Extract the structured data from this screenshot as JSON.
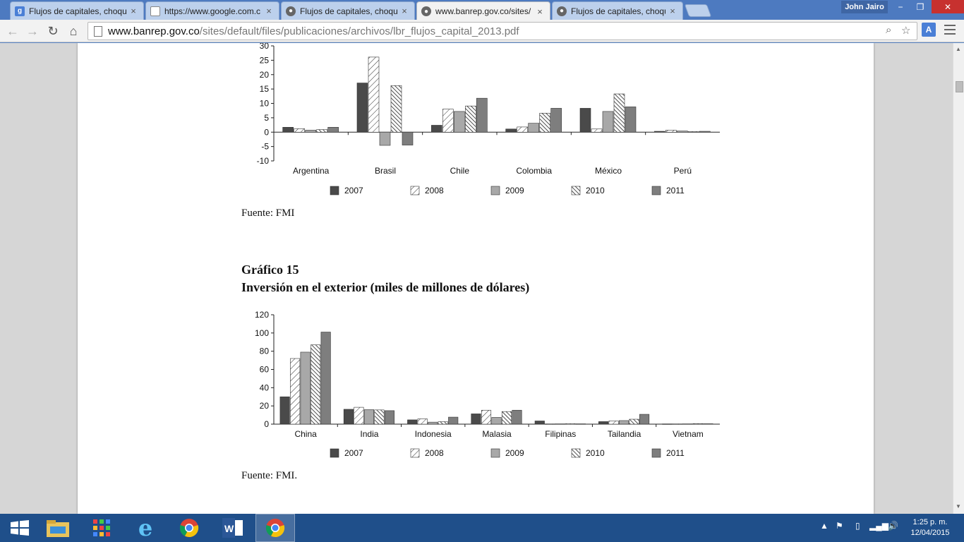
{
  "window": {
    "profile_name": "John Jairo",
    "minimize": "−",
    "restore": "❐",
    "close": "✕"
  },
  "tabs": [
    {
      "title": "Flujos de capitales, choqu",
      "icon": "google-icon",
      "active": false
    },
    {
      "title": "https://www.google.com.c",
      "icon": "page-icon",
      "active": false
    },
    {
      "title": "Flujos de capitales, choqu",
      "icon": "banrep-icon",
      "active": false
    },
    {
      "title": "www.banrep.gov.co/sites/",
      "icon": "banrep-icon",
      "active": true
    },
    {
      "title": "Flujos de capitales, choqu",
      "icon": "banrep-icon",
      "active": false
    }
  ],
  "toolbar": {
    "url_domain": "www.banrep.gov.co",
    "url_path": "/sites/default/files/publicaciones/archivos/lbr_flujos_capital_2013.pdf"
  },
  "document": {
    "source_1": "Fuente: FMI",
    "chart2_label": "Gráfico 15",
    "chart2_title": "Inversión en el exterior (miles de millones de dólares)",
    "source_2": "Fuente: FMI."
  },
  "colors": {
    "s2007": "#4a4a4a",
    "s2009": "#a8a8a8",
    "s2011": "#7e7e7e"
  },
  "chart_data": [
    {
      "type": "bar",
      "title": "",
      "categories": [
        "Argentina",
        "Brasil",
        "Chile",
        "Colombia",
        "México",
        "Perú"
      ],
      "yticks": [
        30,
        25,
        20,
        15,
        10,
        5,
        0,
        -5,
        -10
      ],
      "ylim": [
        -10,
        30
      ],
      "grid": false,
      "legend": "bottom",
      "series": [
        {
          "name": "2007",
          "style": "solid-dark",
          "values": [
            1.7,
            17.1,
            2.4,
            1.1,
            8.3,
            0.3
          ]
        },
        {
          "name": "2008",
          "style": "diagonal-hatch",
          "values": [
            1.2,
            26.1,
            8.0,
            1.8,
            1.1,
            0.7
          ]
        },
        {
          "name": "2009",
          "style": "solid-light",
          "values": [
            0.7,
            -4.6,
            7.2,
            3.1,
            7.2,
            0.4
          ]
        },
        {
          "name": "2010",
          "style": "dense-hatch",
          "values": [
            0.9,
            16.2,
            9.1,
            6.6,
            13.3,
            0.2
          ]
        },
        {
          "name": "2011",
          "style": "solid-mid",
          "values": [
            1.7,
            -4.5,
            11.8,
            8.3,
            8.8,
            0.3
          ]
        }
      ]
    },
    {
      "type": "bar",
      "title": "Inversión en el exterior (miles de millones de dólares)",
      "categories": [
        "China",
        "India",
        "Indonesia",
        "Malasia",
        "Filipinas",
        "Tailandia",
        "Vietnam"
      ],
      "yticks": [
        120,
        100,
        80,
        60,
        40,
        20,
        0
      ],
      "ylim": [
        0,
        120
      ],
      "grid": false,
      "legend": "bottom",
      "series": [
        {
          "name": "2007",
          "style": "solid-dark",
          "values": [
            30,
            16.3,
            4.7,
            11.3,
            3.5,
            2.8,
            0.3
          ]
        },
        {
          "name": "2008",
          "style": "diagonal-hatch",
          "values": [
            72,
            18.5,
            5.8,
            15.3,
            0.3,
            3.5,
            0.3
          ]
        },
        {
          "name": "2009",
          "style": "solid-light",
          "values": [
            79,
            15.9,
            2.2,
            7.4,
            0.4,
            3.9,
            0.4
          ]
        },
        {
          "name": "2010",
          "style": "dense-hatch",
          "values": [
            87,
            15.6,
            2.7,
            13.8,
            0.5,
            5.4,
            0.6
          ]
        },
        {
          "name": "2011",
          "style": "solid-mid",
          "values": [
            101,
            14.8,
            7.7,
            15.3,
            0.4,
            10.8,
            0.5
          ]
        }
      ]
    }
  ],
  "taskbar": {
    "apps": [
      "start-button",
      "file-explorer",
      "apps-grid",
      "internet-explorer",
      "chrome",
      "word",
      "chrome-active"
    ],
    "clock_time": "1:25 p. m.",
    "clock_date": "12/04/2015"
  }
}
